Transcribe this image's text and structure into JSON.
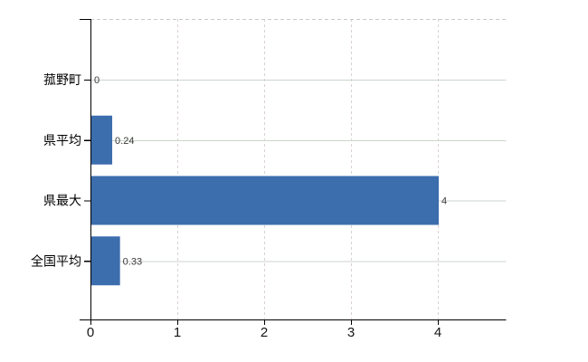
{
  "chart_data": {
    "type": "bar",
    "orientation": "horizontal",
    "title": "",
    "xlabel": "",
    "ylabel": "",
    "categories": [
      "菰野町",
      "県平均",
      "県最大",
      "全国平均"
    ],
    "values": [
      0,
      0.24,
      4,
      0.33
    ],
    "value_labels": [
      "0",
      "0.24",
      "4",
      "0.33"
    ],
    "x_ticks": [
      0,
      1,
      2,
      3,
      4
    ],
    "xlim": [
      0,
      4.79
    ],
    "grid": true,
    "legend": false,
    "colors": {
      "bar": "#3c6dad",
      "grid_horizontal": "#ccd6cc",
      "grid_vertical": "#d9d0d7",
      "frame_dashed": "#c9c9c9",
      "axis": "#000000",
      "value_label": "#3a3a3a",
      "tick_label": "#161616",
      "background": "#ffffff"
    }
  }
}
